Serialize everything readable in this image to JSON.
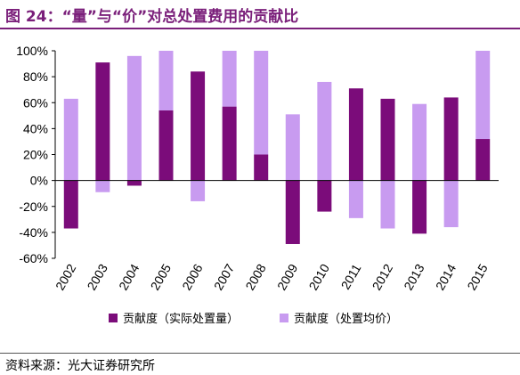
{
  "title": "图 24：“量”与“价”对总处置费用的贡献比",
  "source": "资料来源：光大证券研究所",
  "colors": {
    "series1": "#7b0c7a",
    "series2": "#c89bf0",
    "title": "#7a1f7a"
  },
  "chart_data": {
    "type": "bar",
    "title": "",
    "xlabel": "",
    "ylabel": "",
    "categories": [
      "2002",
      "2003",
      "2004",
      "2005",
      "2006",
      "2007",
      "2008",
      "2009",
      "2010",
      "2011",
      "2012",
      "2013",
      "2014",
      "2015"
    ],
    "series": [
      {
        "name": "贡献度（实际处置量）",
        "values": [
          -37,
          91,
          -4,
          54,
          84,
          57,
          20,
          -49,
          -24,
          71,
          63,
          -41,
          64,
          32
        ]
      },
      {
        "name": "贡献度（处置均价）",
        "values": [
          63,
          -9,
          96,
          46,
          -16,
          43,
          80,
          51,
          76,
          -29,
          -37,
          59,
          -36,
          68
        ]
      }
    ],
    "stacked": true,
    "ylim": [
      -60,
      100
    ],
    "yticks": [
      -60,
      -40,
      -20,
      0,
      20,
      40,
      60,
      80,
      100
    ],
    "ytick_labels": [
      "-60%",
      "-40%",
      "-20%",
      "0%",
      "20%",
      "40%",
      "60%",
      "80%",
      "100%"
    ],
    "legend_position": "bottom",
    "grid": false
  }
}
